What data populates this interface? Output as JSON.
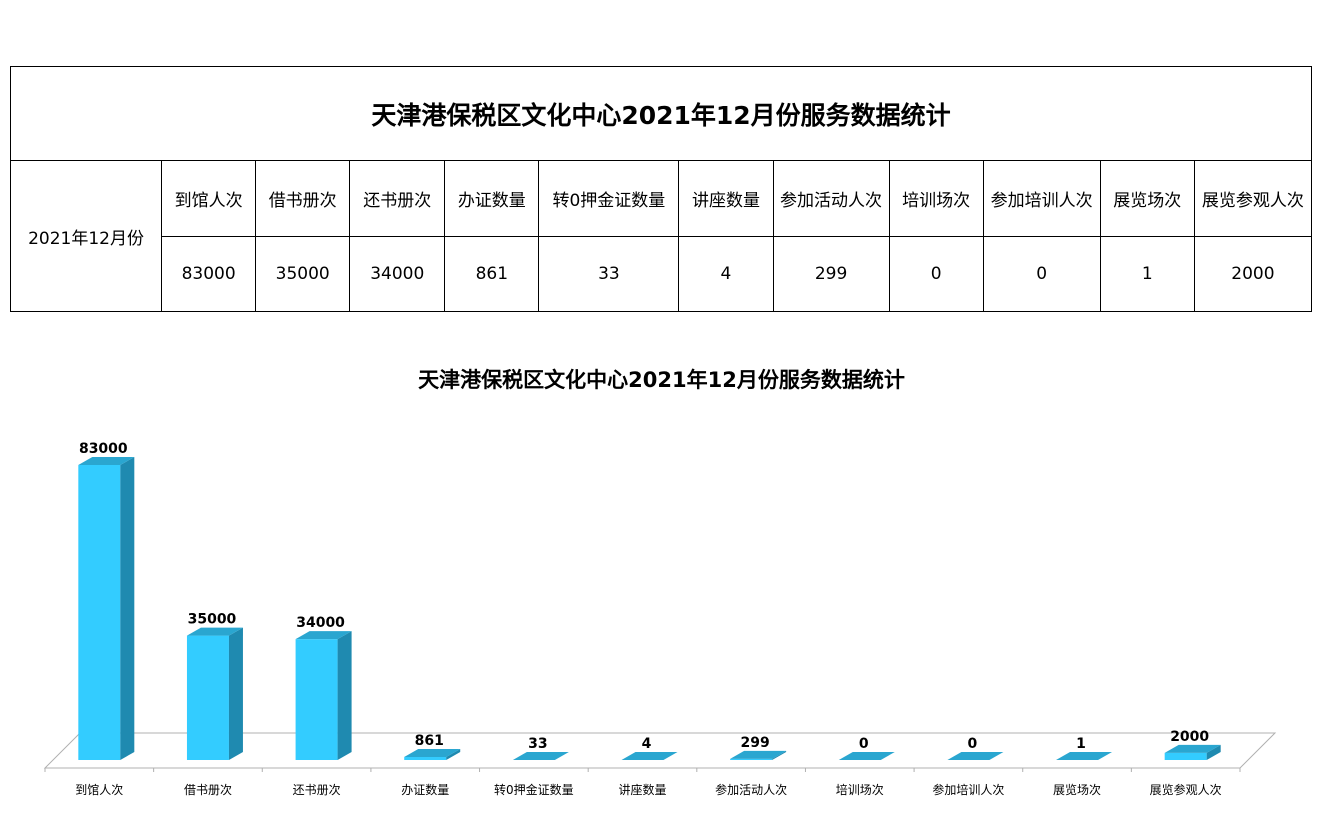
{
  "table": {
    "title": "天津港保税区文化中心2021年12月份服务数据统计",
    "row_label": "2021年12月份",
    "headers": [
      "到馆人次",
      "借书册次",
      "还书册次",
      "办证数量",
      "转0押金证数量",
      "讲座数量",
      "参加活动人次",
      "培训场次",
      "参加培训人次",
      "展览场次",
      "展览参观人次"
    ],
    "values": [
      "83000",
      "35000",
      "34000",
      "861",
      "33",
      "4",
      "299",
      "0",
      "0",
      "1",
      "2000"
    ]
  },
  "chart_data": {
    "type": "bar",
    "title": "天津港保税区文化中心2021年12月份服务数据统计",
    "categories": [
      "到馆人次",
      "借书册次",
      "还书册次",
      "办证数量",
      "转0押金证数量",
      "讲座数量",
      "参加活动人次",
      "培训场次",
      "参加培训人次",
      "展览场次",
      "展览参观人次"
    ],
    "values": [
      83000,
      35000,
      34000,
      861,
      33,
      4,
      299,
      0,
      0,
      1,
      2000
    ],
    "data_labels": true,
    "grid": false,
    "legend": "none",
    "style": "3d",
    "colors": {
      "front": "#33CCFF",
      "side": "#1F8AB0",
      "top": "#2AA6D0",
      "floor": "#FFFFFF",
      "floor_edge": "#B0B0B0"
    }
  }
}
